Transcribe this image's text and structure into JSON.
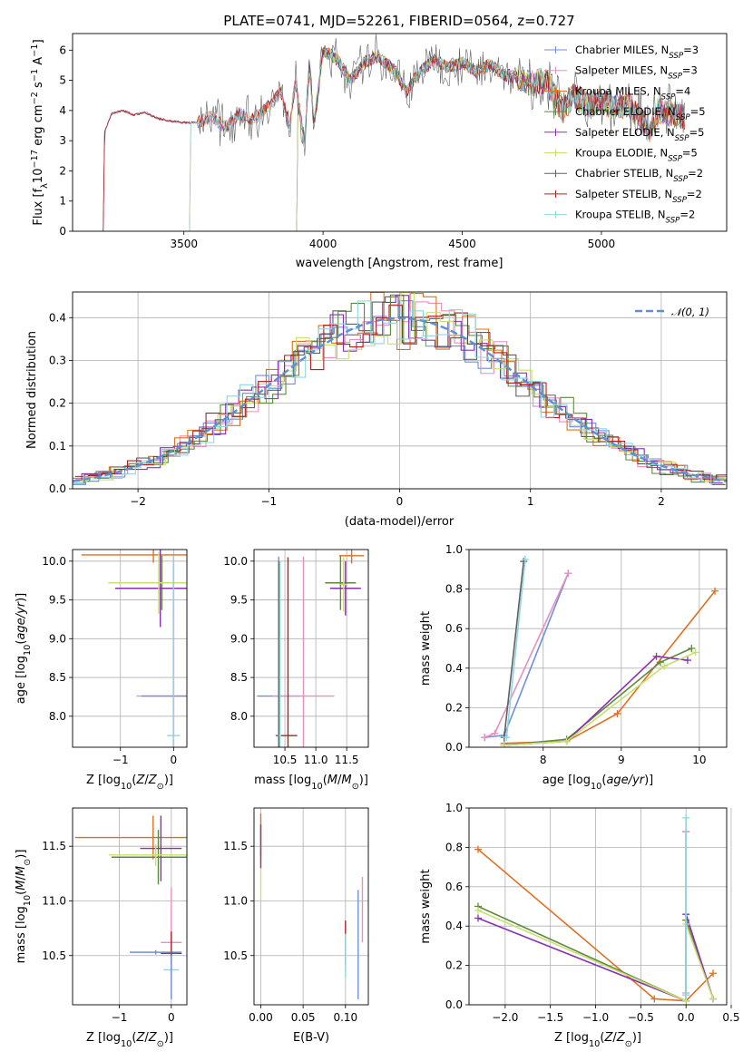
{
  "colors": {
    "Chabrier MILES": "#6f8fdb",
    "Salpeter MILES": "#e88fbf",
    "Kroupa MILES": "#e07020",
    "Chabrier ELODIE": "#5c8a3c",
    "Salpeter ELODIE": "#8a30b0",
    "Kroupa ELODIE": "#c8e070",
    "Chabrier STELIB": "#606060",
    "Salpeter STELIB": "#b02020",
    "Kroupa STELIB": "#8ed6dc",
    "gaussian": "#5b8fd6"
  },
  "chart_data": [
    {
      "id": "spectrum",
      "type": "line",
      "title": "PLATE=0741, MJD=52261, FIBERID=0564, z=0.727",
      "xlabel": "wavelength [Angstrom, rest frame]",
      "ylabel": "Flux [f_λ 10⁻¹⁷ erg cm⁻² s⁻¹ A⁻¹]",
      "xlim": [
        3100,
        5450
      ],
      "ylim": [
        0,
        6.55
      ],
      "xticks": [
        "3500",
        "4000",
        "4500",
        "5000"
      ],
      "yticks": [
        "0",
        "1",
        "2",
        "3",
        "4",
        "5",
        "6"
      ],
      "grid": false,
      "legend_position": "right",
      "legend": [
        {
          "label": "Chabrier MILES, N",
          "sub": "SSP",
          "tail": "=3"
        },
        {
          "label": "Salpeter MILES, N",
          "sub": "SSP",
          "tail": "=3"
        },
        {
          "label": "Kroupa MILES, N",
          "sub": "SSP",
          "tail": "=4"
        },
        {
          "label": "Chabrier ELODIE, N",
          "sub": "SSP",
          "tail": "=5"
        },
        {
          "label": "Salpeter ELODIE, N",
          "sub": "SSP",
          "tail": "=5"
        },
        {
          "label": "Kroupa ELODIE, N",
          "sub": "SSP",
          "tail": "=5"
        },
        {
          "label": "Chabrier STELIB, N",
          "sub": "SSP",
          "tail": "=2"
        },
        {
          "label": "Salpeter STELIB, N",
          "sub": "SSP",
          "tail": "=2"
        },
        {
          "label": "Kroupa STELIB, N",
          "sub": "SSP",
          "tail": "=2"
        }
      ],
      "envelope": [
        [
          3210,
          0
        ],
        [
          3215,
          3.3
        ],
        [
          3240,
          3.9
        ],
        [
          3280,
          4.0
        ],
        [
          3320,
          3.85
        ],
        [
          3360,
          3.95
        ],
        [
          3400,
          3.75
        ],
        [
          3450,
          3.65
        ],
        [
          3500,
          3.6
        ],
        [
          3550,
          3.6
        ],
        [
          3600,
          3.8
        ],
        [
          3650,
          3.45
        ],
        [
          3700,
          3.9
        ],
        [
          3750,
          3.7
        ],
        [
          3800,
          4.1
        ],
        [
          3850,
          4.6
        ],
        [
          3880,
          3.4
        ],
        [
          3900,
          5.0
        ],
        [
          3933,
          2.9
        ],
        [
          3950,
          5.4
        ],
        [
          3968,
          3.6
        ],
        [
          4000,
          6.0
        ],
        [
          4050,
          5.7
        ],
        [
          4100,
          5.0
        ],
        [
          4150,
          5.6
        ],
        [
          4200,
          5.8
        ],
        [
          4260,
          5.3
        ],
        [
          4300,
          4.6
        ],
        [
          4340,
          5.2
        ],
        [
          4400,
          5.7
        ],
        [
          4450,
          5.4
        ],
        [
          4500,
          5.6
        ],
        [
          4550,
          5.3
        ],
        [
          4600,
          5.5
        ],
        [
          4650,
          5.2
        ],
        [
          4700,
          5.1
        ],
        [
          4750,
          4.9
        ],
        [
          4800,
          5.0
        ],
        [
          4861,
          4.0
        ],
        [
          4900,
          4.5
        ],
        [
          4950,
          4.2
        ],
        [
          5000,
          4.3
        ],
        [
          5050,
          4.1
        ],
        [
          5100,
          4.2
        ],
        [
          5175,
          3.3
        ],
        [
          5200,
          4.0
        ],
        [
          5260,
          3.9
        ],
        [
          5300,
          3.8
        ]
      ],
      "model_starts": [
        {
          "model": "Chabrier STELIB",
          "start": 3210
        },
        {
          "model": "Kroupa MILES",
          "start": 3525
        },
        {
          "model": "Kroupa ELODIE",
          "start": 3910
        }
      ]
    },
    {
      "id": "residuals",
      "type": "line",
      "xlabel": "(data-model)/error",
      "ylabel": "Normed distribution",
      "xlim": [
        -2.5,
        2.5
      ],
      "ylim": [
        0,
        0.46
      ],
      "xticks": [
        -2,
        -1,
        0,
        1,
        2
      ],
      "yticks": [
        0.0,
        0.1,
        0.2,
        0.3,
        0.4
      ],
      "grid": true,
      "legend_position": "top-right",
      "legend": "𝒩(0, 1)",
      "gaussian": {
        "mean": 0,
        "sigma": 1
      },
      "bin_width": 0.1,
      "histogram_offsets": [
        0.0,
        0.02,
        -0.02,
        0.03,
        -0.03,
        0.01,
        -0.01,
        0.02,
        -0.02
      ]
    },
    {
      "id": "age_vs_Z",
      "type": "scatter",
      "xlabel": "Z [log10(Z/Z⊙)]",
      "ylabel": "age  [log10(age/yr)]",
      "xlim": [
        -1.9,
        0.25
      ],
      "ylim": [
        7.6,
        10.15
      ],
      "xticks": [
        -1,
        0
      ],
      "yticks": [
        8.0,
        8.5,
        9.0,
        9.5,
        10.0
      ],
      "grid": true,
      "points": [
        {
          "model": "Kroupa MILES",
          "x": -0.38,
          "y": 10.08,
          "xerr": 1.35,
          "yerr": 0.1
        },
        {
          "model": "Chabrier ELODIE",
          "x": -0.22,
          "y": 9.72,
          "xerr": 0.9,
          "yerr": 0.35
        },
        {
          "model": "Salpeter ELODIE",
          "x": -0.25,
          "y": 9.65,
          "xerr": 0.85,
          "yerr": 0.5
        },
        {
          "model": "Kroupa ELODIE",
          "x": -0.28,
          "y": 9.72,
          "xerr": 0.95,
          "yerr": 0.4
        },
        {
          "model": "Salpeter MILES",
          "x": 0.0,
          "y": 8.26,
          "xerr": 0.7,
          "yerr": 1.8
        },
        {
          "model": "Chabrier MILES",
          "x": 0.0,
          "y": 8.26,
          "xerr": 0.6,
          "yerr": 1.7
        },
        {
          "model": "Kroupa STELIB",
          "x": 0.0,
          "y": 7.75,
          "xerr": 0.12,
          "yerr": 2.3
        }
      ]
    },
    {
      "id": "age_vs_mass",
      "type": "scatter",
      "xlabel": "mass [log10(M/M⊙)]",
      "xlim": [
        10.0,
        11.85
      ],
      "ylim": [
        7.6,
        10.15
      ],
      "xticks": [
        10.5,
        11.0,
        11.5
      ],
      "xticklabels": [
        "10.5",
        "11.0",
        "11.5"
      ],
      "yticks": [
        8.0,
        8.5,
        9.0,
        9.5,
        10.0
      ],
      "grid": true,
      "points": [
        {
          "model": "Kroupa MILES",
          "x": 11.58,
          "y": 10.07,
          "xerr": 0.2,
          "yerr": 0.1
        },
        {
          "model": "Chabrier ELODIE",
          "x": 11.4,
          "y": 9.72,
          "xerr": 0.25,
          "yerr": 0.35
        },
        {
          "model": "Salpeter ELODIE",
          "x": 11.48,
          "y": 9.65,
          "xerr": 0.25,
          "yerr": 0.35
        },
        {
          "model": "Kroupa ELODIE",
          "x": 11.45,
          "y": 9.7,
          "xerr": 0.05,
          "yerr": 0.35
        },
        {
          "model": "Chabrier MILES",
          "x": 10.4,
          "y": 8.26,
          "xerr": 0.35,
          "yerr": 1.8
        },
        {
          "model": "Salpeter MILES",
          "x": 10.8,
          "y": 8.26,
          "xerr": 0.5,
          "yerr": 1.8
        },
        {
          "model": "Salpeter STELIB",
          "x": 10.55,
          "y": 7.75,
          "xerr": 0.15,
          "yerr": 2.3
        },
        {
          "model": "Chabrier STELIB",
          "x": 10.4,
          "y": 7.75,
          "xerr": 0.05,
          "yerr": 2.25
        },
        {
          "model": "Kroupa STELIB",
          "x": 10.42,
          "y": 7.75,
          "xerr": 0.02,
          "yerr": 2.25
        }
      ]
    },
    {
      "id": "weight_vs_age",
      "type": "line",
      "xlabel": "age  [log10(age/yr)]",
      "ylabel": "mass weight",
      "xlim": [
        7.05,
        10.35
      ],
      "ylim": [
        0,
        1.0
      ],
      "xticks": [
        8,
        9,
        10
      ],
      "yticks": [
        0.0,
        0.2,
        0.4,
        0.6,
        0.8,
        1.0
      ],
      "grid": true,
      "series": [
        {
          "model": "Chabrier MILES",
          "x": [
            7.25,
            7.5,
            8.32
          ],
          "y": [
            0.05,
            0.06,
            0.88
          ]
        },
        {
          "model": "Salpeter MILES",
          "x": [
            7.25,
            7.38,
            8.32
          ],
          "y": [
            0.05,
            0.07,
            0.88
          ]
        },
        {
          "model": "Kroupa MILES",
          "x": [
            7.5,
            8.3,
            8.95,
            10.2
          ],
          "y": [
            0.02,
            0.03,
            0.17,
            0.79
          ]
        },
        {
          "model": "Chabrier ELODIE",
          "x": [
            7.5,
            8.3,
            9.5,
            9.9
          ],
          "y": [
            0.01,
            0.04,
            0.43,
            0.5
          ]
        },
        {
          "model": "Salpeter ELODIE",
          "x": [
            7.5,
            8.3,
            9.45,
            9.85
          ],
          "y": [
            0.01,
            0.03,
            0.46,
            0.44
          ]
        },
        {
          "model": "Kroupa ELODIE",
          "x": [
            7.5,
            8.3,
            9.55,
            9.95
          ],
          "y": [
            0.01,
            0.03,
            0.41,
            0.48
          ]
        },
        {
          "model": "Chabrier STELIB",
          "x": [
            7.5,
            7.75
          ],
          "y": [
            0.05,
            0.94
          ]
        },
        {
          "model": "Kroupa STELIB",
          "x": [
            7.53,
            7.77
          ],
          "y": [
            0.05,
            0.95
          ]
        }
      ]
    },
    {
      "id": "mass_vs_Z",
      "type": "scatter",
      "xlabel": "Z [log10(Z/Z⊙)]",
      "ylabel": "mass [log10(M/M⊙)]",
      "xlim": [
        -1.9,
        0.3
      ],
      "ylim": [
        10.05,
        11.85
      ],
      "xticks": [
        -1,
        0
      ],
      "yticks": [
        10.5,
        11.0,
        11.5
      ],
      "grid": true,
      "points": [
        {
          "model": "Kroupa MILES",
          "x": -0.35,
          "y": 11.58,
          "xerr": 1.5,
          "yerr": 0.2
        },
        {
          "model": "Chabrier ELODIE",
          "x": -0.25,
          "y": 11.4,
          "xerr": 0.9,
          "yerr": 0.25
        },
        {
          "model": "Salpeter ELODIE",
          "x": -0.2,
          "y": 11.48,
          "xerr": 0.4,
          "yerr": 0.3
        },
        {
          "model": "Kroupa ELODIE",
          "x": -0.3,
          "y": 11.42,
          "xerr": 0.9,
          "yerr": 0.1
        },
        {
          "model": "Salpeter MILES",
          "x": 0.0,
          "y": 10.62,
          "xerr": 0.2,
          "yerr": 0.5
        },
        {
          "model": "Salpeter STELIB",
          "x": 0.0,
          "y": 10.52,
          "xerr": 0.2,
          "yerr": 0.2
        },
        {
          "model": "Chabrier MILES",
          "x": -0.3,
          "y": 10.53,
          "xerr": 0.5,
          "yerr": 0.02
        },
        {
          "model": "Chabrier STELIB",
          "x": 0.0,
          "y": 10.52,
          "xerr": 0.1,
          "yerr": 0.02
        },
        {
          "model": "Kroupa STELIB",
          "x": 0.0,
          "y": 10.37,
          "xerr": 0.15,
          "yerr": 0.05
        },
        {
          "model": "Chabrier MILES",
          "x": 0.0,
          "y": 10.3,
          "xerr": 0.01,
          "yerr": 0.2
        }
      ]
    },
    {
      "id": "mass_vs_ebv",
      "type": "scatter",
      "xlabel": "E(B-V)",
      "xlim": [
        -0.008,
        0.127
      ],
      "ylim": [
        10.05,
        11.85
      ],
      "xticks": [
        0.0,
        0.05,
        0.1
      ],
      "xticklabels": [
        "0.00",
        "0.05",
        "0.10"
      ],
      "yticks": [
        10.5,
        11.0,
        11.5
      ],
      "grid": true,
      "points": [
        {
          "model": "Kroupa MILES",
          "x": 0.0,
          "y": 11.6,
          "xerr": 0.0,
          "yerr": 0.2
        },
        {
          "model": "Kroupa ELODIE",
          "x": 0.0,
          "y": 11.35,
          "xerr": 0.0,
          "yerr": 0.35
        },
        {
          "model": "Salpeter ELODIE",
          "x": 0.0,
          "y": 11.5,
          "xerr": 0.0,
          "yerr": 0.2
        },
        {
          "model": "Salpeter STELIB",
          "x": 0.1,
          "y": 10.62,
          "xerr": 0.0,
          "yerr": 0.2
        },
        {
          "model": "Kroupa STELIB",
          "x": 0.1,
          "y": 10.5,
          "xerr": 0.0,
          "yerr": 0.2
        },
        {
          "model": "Chabrier MILES",
          "x": 0.115,
          "y": 10.6,
          "xerr": 0.0,
          "yerr": 0.5
        },
        {
          "model": "Salpeter MILES",
          "x": 0.12,
          "y": 10.92,
          "xerr": 0.0,
          "yerr": 0.3
        }
      ]
    },
    {
      "id": "weight_vs_Z",
      "type": "line",
      "xlabel": "Z [log10(Z/Z⊙)]",
      "ylabel": "mass weight",
      "xlim": [
        -2.4,
        0.45
      ],
      "ylim": [
        0,
        1.0
      ],
      "xticks": [
        -2.0,
        -1.5,
        -1.0,
        -0.5,
        0.0,
        0.5
      ],
      "xticklabels": [
        "−2.0",
        "−1.5",
        "−1.0",
        "−0.5",
        "0.0",
        "0.5"
      ],
      "yticks": [
        0.0,
        0.2,
        0.4,
        0.6,
        0.8,
        1.0
      ],
      "grid": true,
      "series": [
        {
          "model": "Kroupa MILES",
          "x": [
            -2.3,
            -0.35,
            0.0,
            0.3
          ],
          "y": [
            0.79,
            0.03,
            0.02,
            0.16
          ]
        },
        {
          "model": "Chabrier ELODIE",
          "x": [
            -2.3,
            0.0,
            0.0,
            0.3
          ],
          "y": [
            0.5,
            0.02,
            0.43,
            0.03
          ]
        },
        {
          "model": "Salpeter ELODIE",
          "x": [
            -2.3,
            0.0,
            0.0,
            0.3
          ],
          "y": [
            0.44,
            0.02,
            0.46,
            0.03
          ]
        },
        {
          "model": "Kroupa ELODIE",
          "x": [
            -2.3,
            0.0,
            0.0,
            0.3
          ],
          "y": [
            0.48,
            0.02,
            0.41,
            0.03
          ]
        },
        {
          "model": "Chabrier MILES",
          "x": [
            0.0,
            0.0
          ],
          "y": [
            0.05,
            0.88
          ]
        },
        {
          "model": "Salpeter MILES",
          "x": [
            0.0,
            0.0
          ],
          "y": [
            0.06,
            0.88
          ]
        },
        {
          "model": "Kroupa STELIB",
          "x": [
            0.0,
            0.0
          ],
          "y": [
            0.05,
            0.95
          ]
        }
      ]
    }
  ]
}
